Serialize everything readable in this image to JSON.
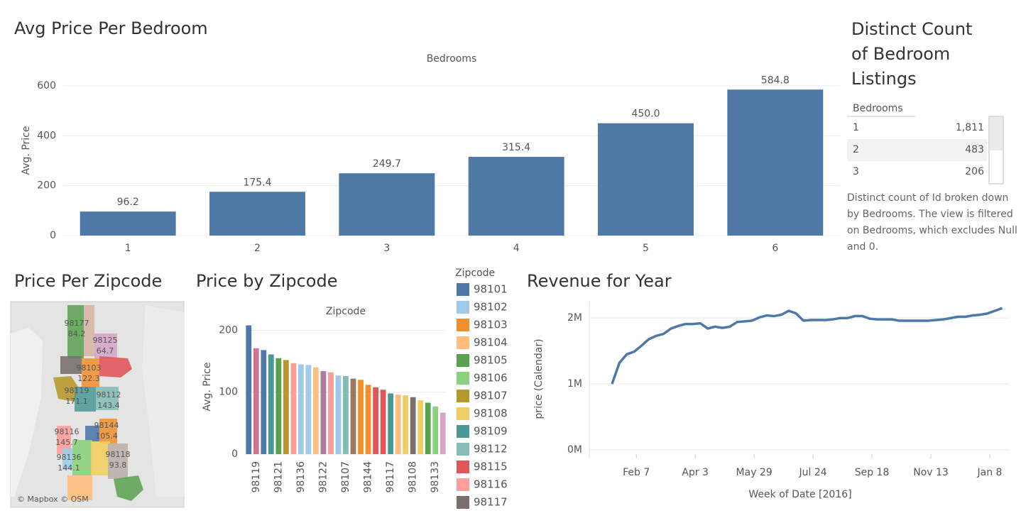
{
  "chart_data": [
    {
      "type": "bar",
      "title": "Avg Price Per Bedroom",
      "x_label": "Bedrooms",
      "y_label": "Avg. Price",
      "categories": [
        "1",
        "2",
        "3",
        "4",
        "5",
        "6"
      ],
      "values": [
        96.2,
        175.4,
        249.7,
        315.4,
        450.0,
        584.8
      ],
      "value_labels": [
        "96.2",
        "175.4",
        "249.7",
        "315.4",
        "450.0",
        "584.8"
      ],
      "color": "#4e79a7",
      "ylim": [
        0,
        668
      ],
      "yticks": [
        0,
        200,
        400,
        600
      ],
      "grid": true
    },
    {
      "type": "bar",
      "title": "Price by Zipcode",
      "x_label": "Zipcode",
      "y_label": "Avg. Price",
      "categories": [
        null,
        "98119",
        null,
        null,
        "98121",
        null,
        null,
        "98136",
        null,
        null,
        "98122",
        null,
        null,
        "98107",
        null,
        null,
        "98144",
        null,
        null,
        "98117",
        null,
        null,
        "98108",
        null,
        null,
        "98133",
        null
      ],
      "values": [
        208,
        171,
        168,
        161,
        155,
        152,
        147,
        145,
        144,
        140,
        134,
        132,
        127,
        126,
        122,
        120,
        112,
        108,
        104,
        98,
        96,
        95,
        92,
        87,
        83,
        77,
        67
      ],
      "colors": [
        "#4e79a7",
        "#d37295",
        "#4e79a7",
        "#499894",
        "#59a14f",
        "#b6992d",
        "#ff9d9a",
        "#a0cbe8",
        "#a0cbe8",
        "#ffbe7d",
        "#b07aa1",
        "#ff9d9a",
        "#a0cbe8",
        "#86bcb6",
        "#9d7660",
        "#f28e2b",
        "#f28e2b",
        "#e15759",
        "#e15759",
        "#499894",
        "#ffbe7d",
        "#f1ce63",
        "#79706e",
        "#f1ce63",
        "#59a14f",
        "#8cd17d",
        "#d4a6c8"
      ],
      "ylim": [
        0,
        212
      ],
      "yticks": [
        0,
        100,
        200
      ],
      "grid": true,
      "legend": {
        "title": "Zipcode",
        "items": [
          {
            "name": "98101",
            "color": "#4e79a7"
          },
          {
            "name": "98102",
            "color": "#a0cbe8"
          },
          {
            "name": "98103",
            "color": "#f28e2b"
          },
          {
            "name": "98104",
            "color": "#ffbe7d"
          },
          {
            "name": "98105",
            "color": "#59a14f"
          },
          {
            "name": "98106",
            "color": "#8cd17d"
          },
          {
            "name": "98107",
            "color": "#b6992d"
          },
          {
            "name": "98108",
            "color": "#f1ce63"
          },
          {
            "name": "98109",
            "color": "#499894"
          },
          {
            "name": "98112",
            "color": "#86bcb6"
          },
          {
            "name": "98115",
            "color": "#e15759"
          },
          {
            "name": "98116",
            "color": "#ff9d9a"
          },
          {
            "name": "98117",
            "color": "#79706e"
          }
        ]
      }
    },
    {
      "type": "line",
      "title": "Revenue for Year",
      "x_label": "Week of Date [2016]",
      "y_label": "price (Calendar)",
      "categories": [
        null,
        null,
        null,
        null,
        null,
        "Feb 7",
        null,
        null,
        null,
        null,
        null,
        null,
        null,
        "Apr 3",
        null,
        null,
        null,
        null,
        null,
        null,
        null,
        "May 29",
        null,
        null,
        null,
        null,
        null,
        null,
        null,
        "Jul 24",
        null,
        null,
        null,
        null,
        null,
        null,
        null,
        "Sep 18",
        null,
        null,
        null,
        null,
        null,
        null,
        null,
        "Nov 13",
        null,
        null,
        null,
        null,
        null,
        null,
        null,
        "Jan 8"
      ],
      "values": [
        1000000,
        1320000,
        1450000,
        1490000,
        1580000,
        1680000,
        1730000,
        1760000,
        1840000,
        1880000,
        1910000,
        1910000,
        1920000,
        1840000,
        1870000,
        1850000,
        1870000,
        1940000,
        1950000,
        1960000,
        2010000,
        2040000,
        2030000,
        2050000,
        2110000,
        2070000,
        1960000,
        1970000,
        1970000,
        1970000,
        1980000,
        2000000,
        2000000,
        2030000,
        2030000,
        1990000,
        1980000,
        1980000,
        1980000,
        1960000,
        1960000,
        1960000,
        1960000,
        1960000,
        1970000,
        1980000,
        2000000,
        2020000,
        2020000,
        2040000,
        2050000,
        2070000,
        2110000,
        2150000
      ],
      "color": "#4e79a7",
      "ylim": [
        0,
        2250000
      ],
      "yticks": [
        {
          "value": 0,
          "label": "0M"
        },
        {
          "value": 1000000,
          "label": "1M"
        },
        {
          "value": 2000000,
          "label": "2M"
        }
      ],
      "grid": true
    }
  ],
  "map": {
    "title": "Price Per Zipcode",
    "attribution": "© Mapbox © OSM",
    "regions": [
      {
        "zipcode": "98177",
        "price": 84.2
      },
      {
        "zipcode": "98125",
        "price": 64.7
      },
      {
        "zipcode": "98103",
        "price": 122.3
      },
      {
        "zipcode": "98119",
        "price": 171.1
      },
      {
        "zipcode": "98112",
        "price": 143.4
      },
      {
        "zipcode": "98116",
        "price": 145.7
      },
      {
        "zipcode": "98144",
        "price": 105.4
      },
      {
        "zipcode": "98136",
        "price": 144.1
      },
      {
        "zipcode": "98118",
        "price": 93.8
      }
    ]
  },
  "table": {
    "title": "Distinct Count of Bedroom Listings",
    "header": "Bedrooms",
    "rows": [
      [
        "1",
        "1,811"
      ],
      [
        "2",
        "483"
      ],
      [
        "3",
        "206"
      ]
    ],
    "note": "Distinct count of Id broken down by Bedrooms. The view is filtered on Bedrooms, which excludes Null and 0."
  }
}
